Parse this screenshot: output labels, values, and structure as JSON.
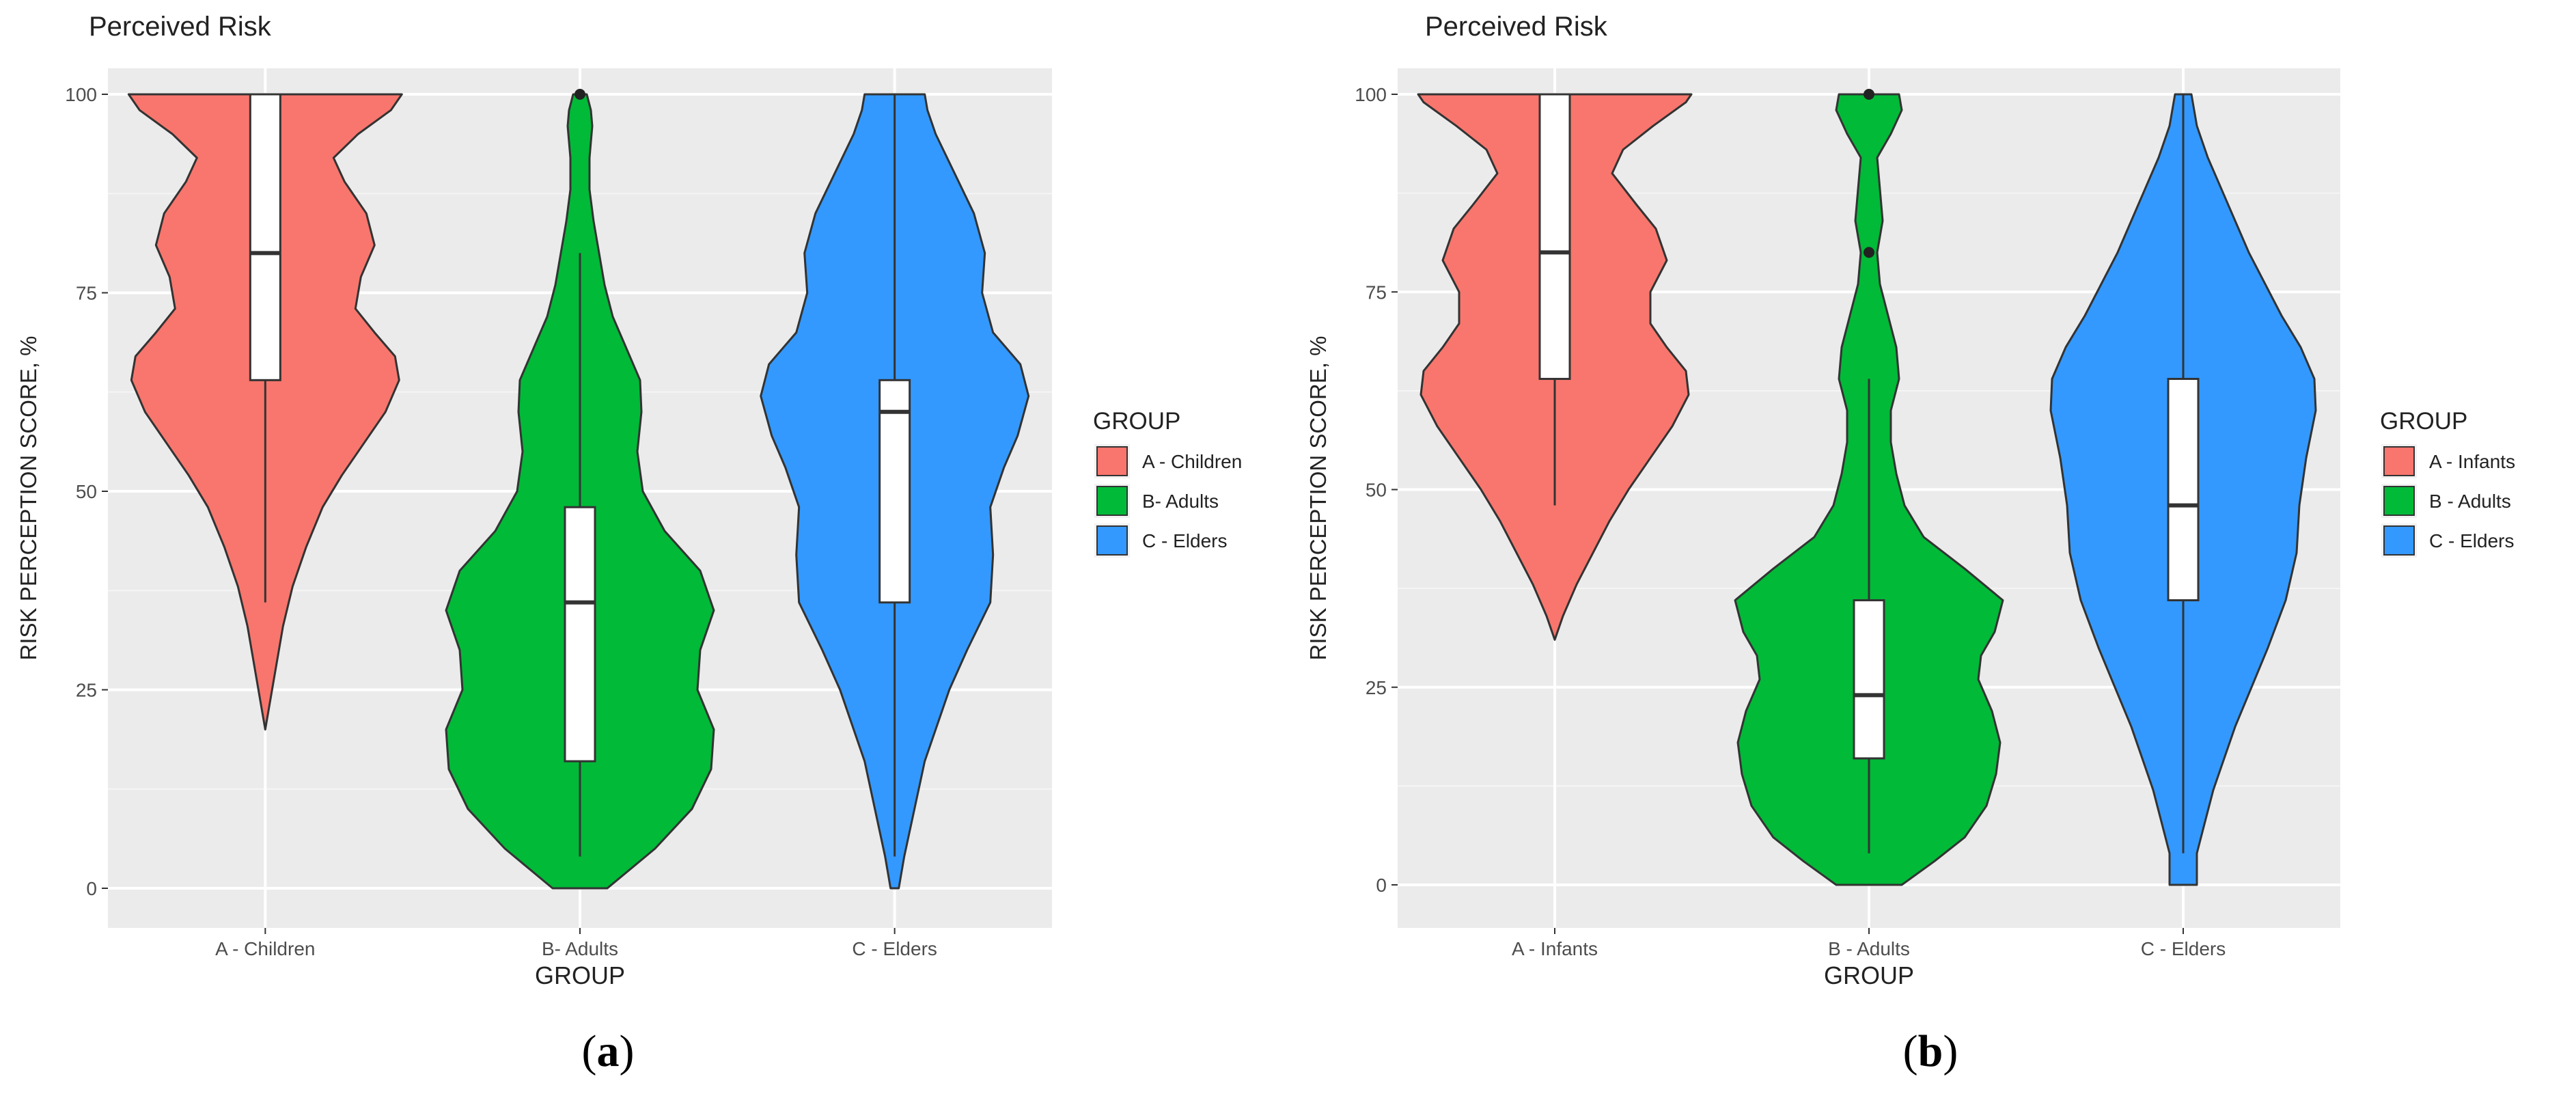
{
  "chart_data": [
    {
      "type": "violin",
      "title": "Perceived Risk",
      "xlabel": "GROUP",
      "ylabel": "RISK PERCEPTION SCORE, %",
      "ylim": [
        0,
        100
      ],
      "yticks": [
        0,
        25,
        50,
        75,
        100
      ],
      "grid": true,
      "legend_title": "GROUP",
      "legend_position": "right",
      "caption": "a",
      "categories": [
        "A - Children",
        "B- Adults",
        "C - Elders"
      ],
      "legend": [
        "A - Children",
        "B- Adults",
        "C - Elders"
      ],
      "colors": [
        "#F8766D",
        "#00BA38",
        "#3399FF"
      ],
      "boxplots": [
        {
          "whisker_low": 36,
          "q1": 64,
          "median": 80,
          "q3": 100,
          "whisker_high": 100,
          "outliers": []
        },
        {
          "whisker_low": 4,
          "q1": 16,
          "median": 36,
          "q3": 48,
          "whisker_high": 80,
          "outliers": [
            100
          ]
        },
        {
          "whisker_low": 4,
          "q1": 36,
          "median": 60,
          "q3": 64,
          "whisker_high": 100,
          "outliers": []
        }
      ],
      "density_profiles": [
        [
          [
            20,
            0.0
          ],
          [
            24,
            0.04
          ],
          [
            28,
            0.08
          ],
          [
            33,
            0.13
          ],
          [
            38,
            0.2
          ],
          [
            43,
            0.3
          ],
          [
            48,
            0.42
          ],
          [
            52,
            0.56
          ],
          [
            56,
            0.72
          ],
          [
            60,
            0.88
          ],
          [
            64,
            0.98
          ],
          [
            67,
            0.95
          ],
          [
            70,
            0.8
          ],
          [
            73,
            0.66
          ],
          [
            77,
            0.7
          ],
          [
            81,
            0.8
          ],
          [
            85,
            0.74
          ],
          [
            89,
            0.58
          ],
          [
            92,
            0.5
          ],
          [
            95,
            0.68
          ],
          [
            98,
            0.92
          ],
          [
            100,
            1.0
          ]
        ],
        [
          [
            0,
            0.2
          ],
          [
            5,
            0.55
          ],
          [
            10,
            0.82
          ],
          [
            15,
            0.96
          ],
          [
            20,
            0.98
          ],
          [
            25,
            0.86
          ],
          [
            30,
            0.88
          ],
          [
            35,
            0.98
          ],
          [
            40,
            0.88
          ],
          [
            45,
            0.62
          ],
          [
            50,
            0.46
          ],
          [
            55,
            0.42
          ],
          [
            60,
            0.45
          ],
          [
            64,
            0.44
          ],
          [
            68,
            0.34
          ],
          [
            72,
            0.24
          ],
          [
            76,
            0.18
          ],
          [
            80,
            0.14
          ],
          [
            84,
            0.1
          ],
          [
            88,
            0.07
          ],
          [
            92,
            0.07
          ],
          [
            96,
            0.09
          ],
          [
            98,
            0.08
          ],
          [
            100,
            0.05
          ]
        ],
        [
          [
            0,
            0.03
          ],
          [
            4,
            0.07
          ],
          [
            8,
            0.12
          ],
          [
            12,
            0.17
          ],
          [
            16,
            0.22
          ],
          [
            20,
            0.3
          ],
          [
            25,
            0.4
          ],
          [
            30,
            0.53
          ],
          [
            36,
            0.7
          ],
          [
            42,
            0.72
          ],
          [
            48,
            0.7
          ],
          [
            53,
            0.8
          ],
          [
            57,
            0.9
          ],
          [
            62,
            0.98
          ],
          [
            66,
            0.92
          ],
          [
            70,
            0.72
          ],
          [
            75,
            0.64
          ],
          [
            80,
            0.66
          ],
          [
            85,
            0.58
          ],
          [
            90,
            0.44
          ],
          [
            95,
            0.3
          ],
          [
            98,
            0.24
          ],
          [
            100,
            0.22
          ]
        ]
      ]
    },
    {
      "type": "violin",
      "title": "Perceived Risk",
      "xlabel": "GROUP",
      "ylabel": "RISK PERCEPTION SCORE, %",
      "ylim": [
        0,
        100
      ],
      "yticks": [
        0,
        25,
        50,
        75,
        100
      ],
      "grid": true,
      "legend_title": "GROUP",
      "legend_position": "right",
      "caption": "b",
      "categories": [
        "A - Infants",
        "B - Adults",
        "C - Elders"
      ],
      "legend": [
        "A - Infants",
        "B - Adults",
        "C - Elders"
      ],
      "colors": [
        "#F8766D",
        "#00BA38",
        "#3399FF"
      ],
      "boxplots": [
        {
          "whisker_low": 48,
          "q1": 64,
          "median": 80,
          "q3": 100,
          "whisker_high": 100,
          "outliers": []
        },
        {
          "whisker_low": 4,
          "q1": 16,
          "median": 24,
          "q3": 36,
          "whisker_high": 64,
          "outliers": [
            80,
            100
          ]
        },
        {
          "whisker_low": 4,
          "q1": 36,
          "median": 48,
          "q3": 64,
          "whisker_high": 100,
          "outliers": []
        }
      ],
      "density_profiles": [
        [
          [
            31,
            0.0
          ],
          [
            34,
            0.06
          ],
          [
            38,
            0.16
          ],
          [
            42,
            0.28
          ],
          [
            46,
            0.4
          ],
          [
            50,
            0.54
          ],
          [
            54,
            0.7
          ],
          [
            58,
            0.86
          ],
          [
            62,
            0.98
          ],
          [
            65,
            0.96
          ],
          [
            68,
            0.82
          ],
          [
            71,
            0.7
          ],
          [
            75,
            0.7
          ],
          [
            79,
            0.82
          ],
          [
            83,
            0.74
          ],
          [
            86,
            0.6
          ],
          [
            90,
            0.42
          ],
          [
            93,
            0.5
          ],
          [
            96,
            0.72
          ],
          [
            99,
            0.96
          ],
          [
            100,
            1.0
          ]
        ],
        [
          [
            0,
            0.24
          ],
          [
            3,
            0.48
          ],
          [
            6,
            0.7
          ],
          [
            10,
            0.86
          ],
          [
            14,
            0.93
          ],
          [
            18,
            0.96
          ],
          [
            22,
            0.9
          ],
          [
            26,
            0.8
          ],
          [
            29,
            0.82
          ],
          [
            32,
            0.92
          ],
          [
            36,
            0.98
          ],
          [
            40,
            0.7
          ],
          [
            44,
            0.4
          ],
          [
            48,
            0.26
          ],
          [
            52,
            0.2
          ],
          [
            56,
            0.16
          ],
          [
            60,
            0.16
          ],
          [
            64,
            0.22
          ],
          [
            68,
            0.2
          ],
          [
            72,
            0.14
          ],
          [
            76,
            0.08
          ],
          [
            80,
            0.06
          ],
          [
            84,
            0.1
          ],
          [
            88,
            0.08
          ],
          [
            92,
            0.06
          ],
          [
            95,
            0.16
          ],
          [
            98,
            0.24
          ],
          [
            100,
            0.22
          ]
        ]
      ],
      "density_profiles_c": [
        [
          0,
          0.1
        ],
        [
          4,
          0.1
        ],
        [
          8,
          0.16
        ],
        [
          12,
          0.22
        ],
        [
          16,
          0.3
        ],
        [
          20,
          0.38
        ],
        [
          25,
          0.5
        ],
        [
          30,
          0.62
        ],
        [
          36,
          0.75
        ],
        [
          42,
          0.83
        ],
        [
          48,
          0.85
        ],
        [
          54,
          0.9
        ],
        [
          60,
          0.97
        ],
        [
          64,
          0.96
        ],
        [
          68,
          0.86
        ],
        [
          72,
          0.72
        ],
        [
          76,
          0.6
        ],
        [
          80,
          0.48
        ],
        [
          84,
          0.38
        ],
        [
          88,
          0.28
        ],
        [
          92,
          0.18
        ],
        [
          96,
          0.1
        ],
        [
          100,
          0.06
        ]
      ]
    }
  ]
}
